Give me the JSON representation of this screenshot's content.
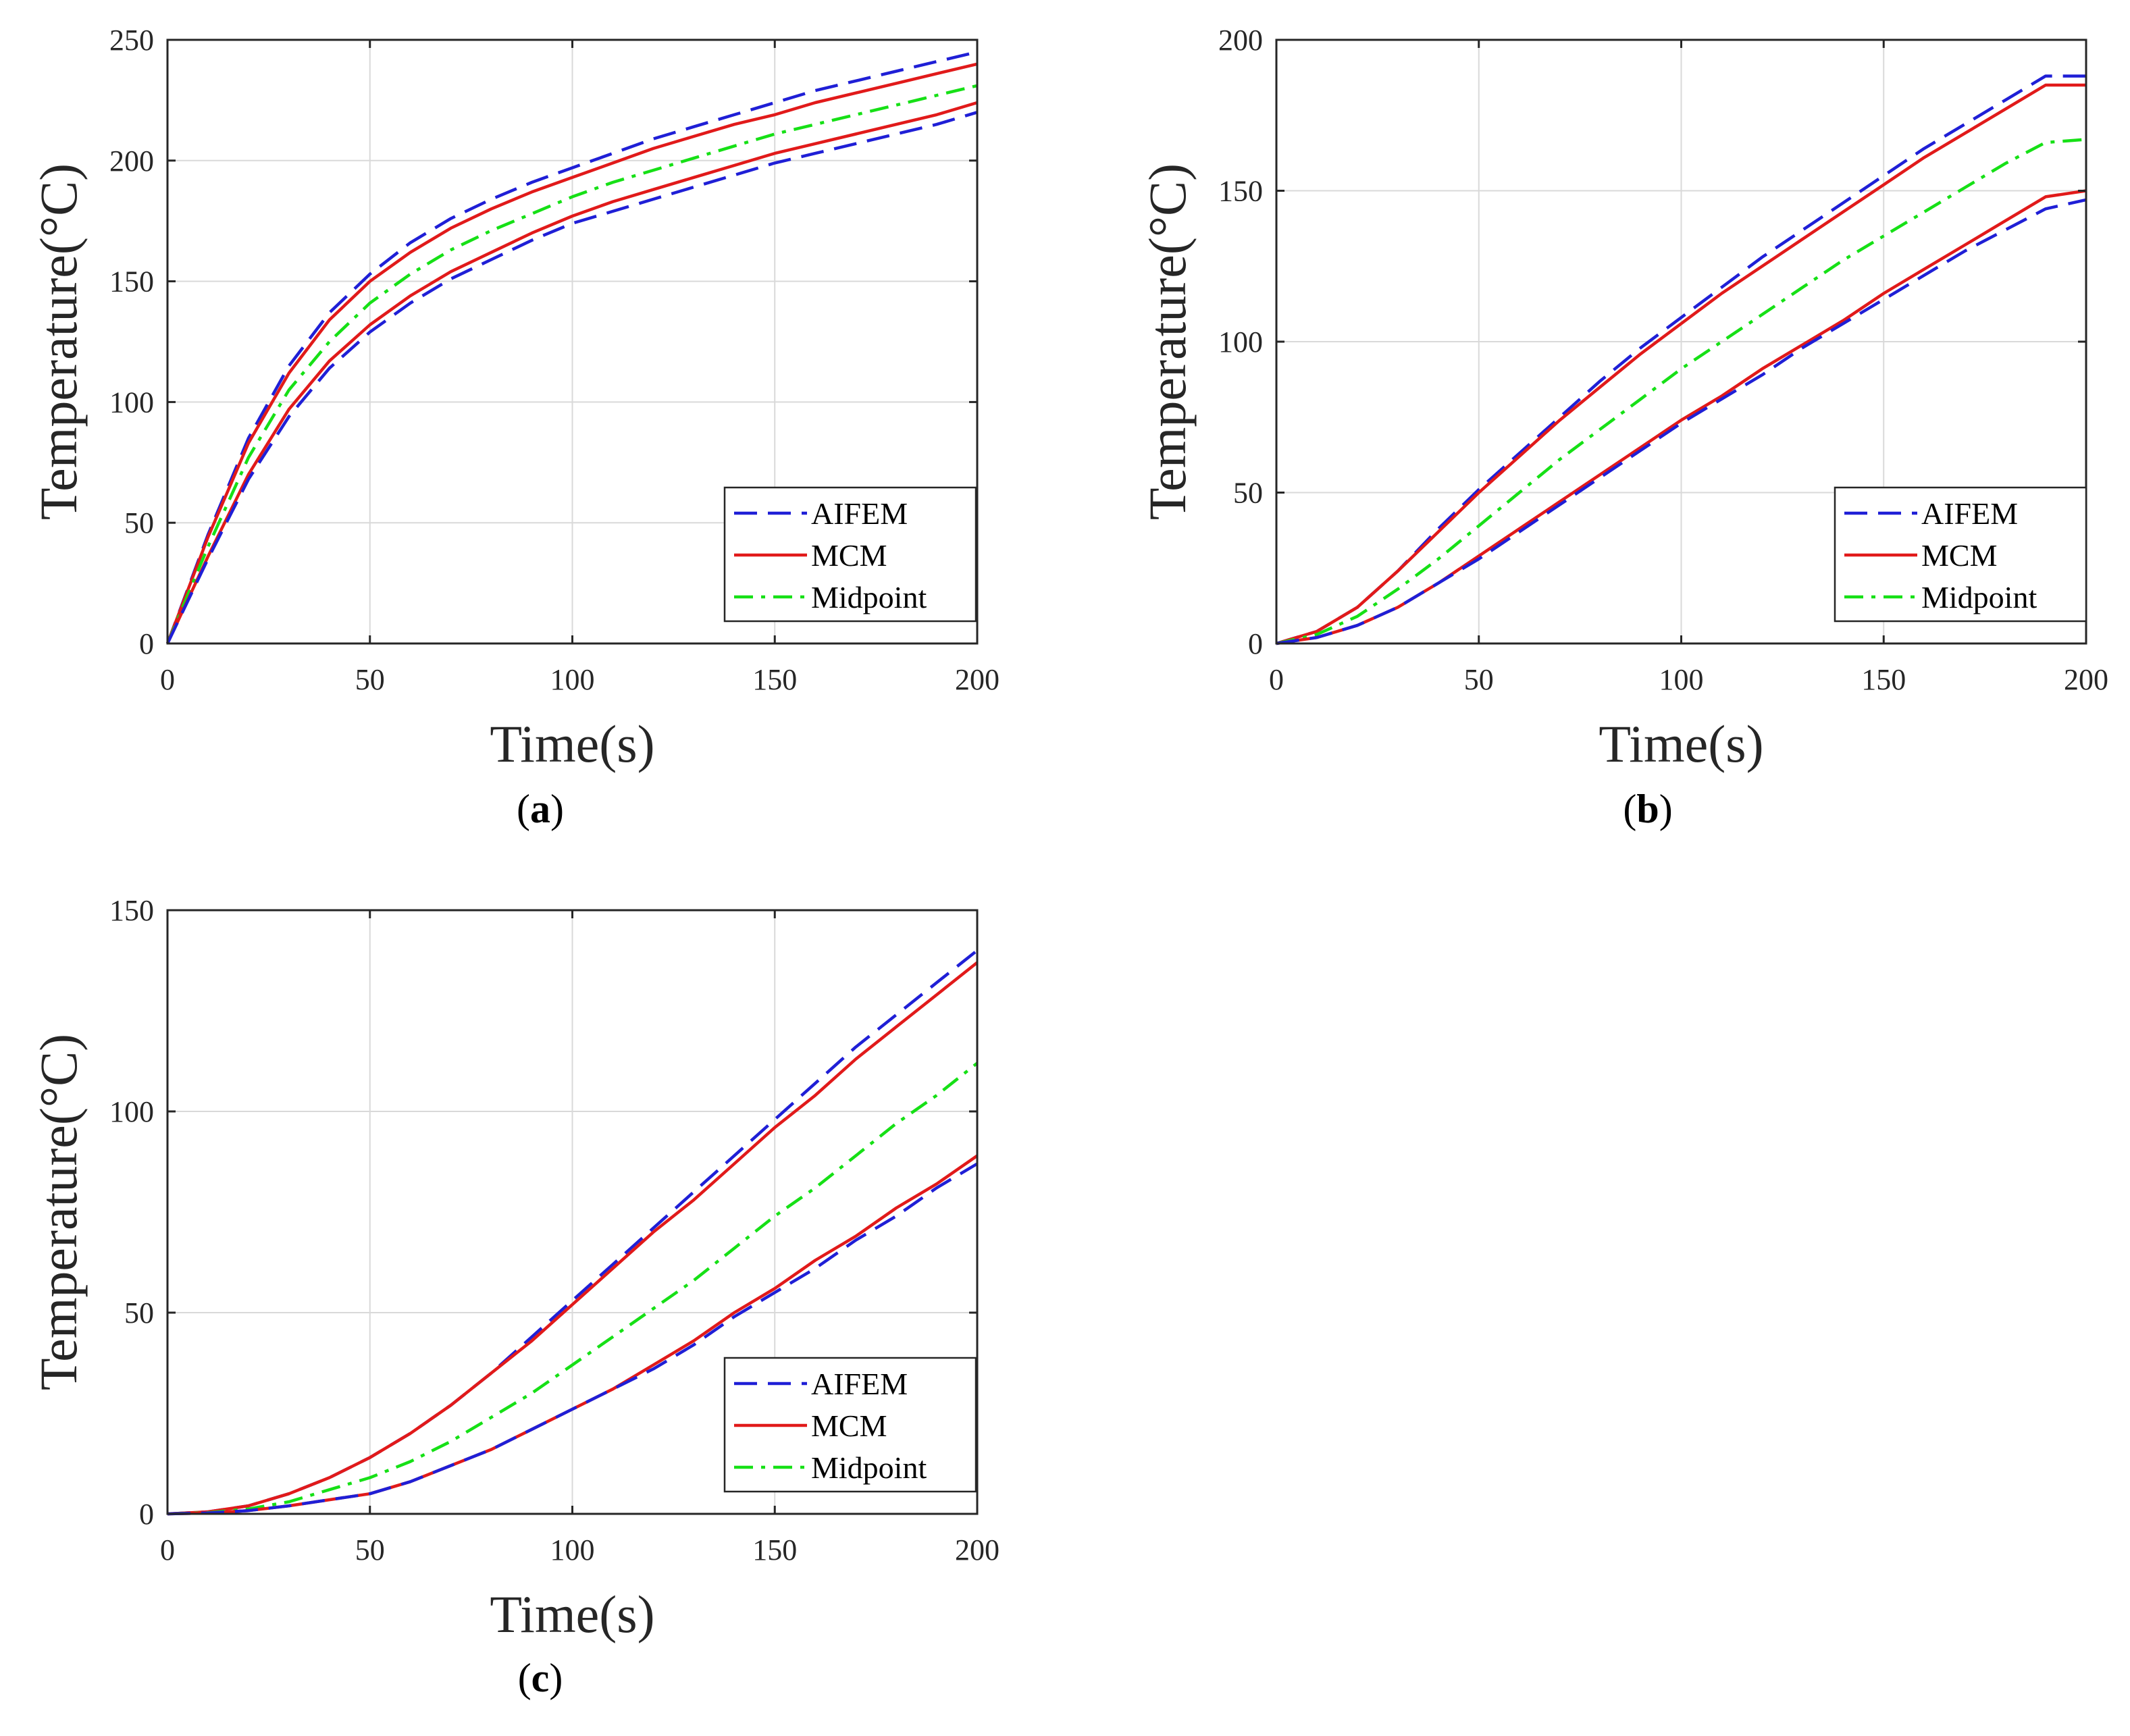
{
  "colors": {
    "upper_bound": "#1f1fd6",
    "mcm": "#e11a1a",
    "midpoint": "#16e016",
    "axis": "#262626",
    "grid": "#d9d9d9"
  },
  "legend_labels": [
    "AIFEM",
    "MCM",
    "Midpoint"
  ],
  "chart_data": [
    {
      "id": "a",
      "type": "line",
      "caption_letter": "a",
      "caption_open": "(",
      "caption_close": ")",
      "xlabel": "Time(s)",
      "ylabel": "Temperature(°C)",
      "xlim": [
        0,
        200
      ],
      "ylim": [
        0,
        250
      ],
      "xticks": [
        0,
        50,
        100,
        150,
        200
      ],
      "yticks": [
        0,
        50,
        100,
        150,
        200,
        250
      ],
      "grid": true,
      "legend_position": "bottom-right",
      "x": [
        0,
        10,
        20,
        30,
        40,
        50,
        60,
        70,
        80,
        90,
        100,
        110,
        120,
        130,
        140,
        150,
        160,
        170,
        180,
        190,
        200
      ],
      "series": [
        {
          "name": "AIFEM",
          "style": "dashed",
          "color_key": "upper_bound",
          "values": [
            0,
            45,
            85,
            115,
            137,
            153,
            166,
            176,
            184,
            191,
            197,
            203,
            209,
            214,
            219,
            224,
            229,
            233,
            237,
            241,
            245
          ]
        },
        {
          "name": "MCM",
          "style": "solid",
          "color_key": "mcm",
          "values": [
            0,
            44,
            83,
            112,
            134,
            150,
            162,
            172,
            180,
            187,
            193,
            199,
            205,
            210,
            215,
            219,
            224,
            228,
            232,
            236,
            240
          ]
        },
        {
          "name": "Midpoint",
          "style": "dashdot",
          "color_key": "midpoint",
          "values": [
            0,
            40,
            77,
            105,
            125,
            141,
            153,
            163,
            171,
            178,
            185,
            191,
            196,
            201,
            206,
            211,
            215,
            219,
            223,
            227,
            231
          ]
        },
        {
          "name": "MCM",
          "style": "solid",
          "color_key": "mcm",
          "values": [
            0,
            36,
            70,
            97,
            117,
            132,
            144,
            154,
            162,
            170,
            177,
            183,
            188,
            193,
            198,
            203,
            207,
            211,
            215,
            219,
            224
          ]
        },
        {
          "name": "AIFEM",
          "style": "dashed",
          "color_key": "upper_bound",
          "values": [
            0,
            35,
            68,
            94,
            114,
            129,
            141,
            151,
            159,
            167,
            174,
            179,
            184,
            189,
            194,
            199,
            203,
            207,
            211,
            215,
            220
          ]
        }
      ]
    },
    {
      "id": "b",
      "type": "line",
      "caption_letter": "b",
      "caption_open": "(",
      "caption_close": ")",
      "xlabel": "Time(s)",
      "ylabel": "Temperature(°C)",
      "xlim": [
        0,
        200
      ],
      "ylim": [
        0,
        200
      ],
      "xticks": [
        0,
        50,
        100,
        150,
        200
      ],
      "yticks": [
        0,
        50,
        100,
        150,
        200
      ],
      "grid": true,
      "legend_position": "bottom-right",
      "x": [
        0,
        10,
        20,
        30,
        40,
        50,
        60,
        70,
        80,
        90,
        100,
        110,
        120,
        130,
        140,
        150,
        160,
        170,
        180,
        190,
        200
      ],
      "series": [
        {
          "name": "AIFEM",
          "style": "dashed",
          "color_key": "upper_bound",
          "values": [
            0,
            4,
            12,
            24,
            38,
            51,
            63,
            75,
            87,
            98,
            108,
            118,
            128,
            137,
            146,
            155,
            164,
            172,
            180,
            188,
            188
          ]
        },
        {
          "name": "MCM",
          "style": "solid",
          "color_key": "mcm",
          "values": [
            0,
            4,
            12,
            24,
            37,
            50,
            62,
            74,
            85,
            96,
            106,
            116,
            125,
            134,
            143,
            152,
            161,
            169,
            177,
            185,
            185
          ]
        },
        {
          "name": "Midpoint",
          "style": "dashdot",
          "color_key": "midpoint",
          "values": [
            0,
            3,
            9,
            18,
            28,
            39,
            50,
            61,
            71,
            81,
            91,
            100,
            109,
            118,
            127,
            135,
            143,
            151,
            159,
            166,
            167
          ]
        },
        {
          "name": "MCM",
          "style": "solid",
          "color_key": "mcm",
          "values": [
            0,
            2,
            6,
            12,
            20,
            29,
            38,
            47,
            56,
            65,
            74,
            82,
            91,
            99,
            107,
            116,
            124,
            132,
            140,
            148,
            150
          ]
        },
        {
          "name": "AIFEM",
          "style": "dashed",
          "color_key": "upper_bound",
          "values": [
            0,
            2,
            6,
            12,
            20,
            28,
            37,
            46,
            55,
            64,
            73,
            81,
            89,
            98,
            106,
            114,
            122,
            130,
            137,
            144,
            147
          ]
        }
      ]
    },
    {
      "id": "c",
      "type": "line",
      "caption_letter": "c",
      "caption_open": "(",
      "caption_close": ")",
      "xlabel": "Time(s)",
      "ylabel": "Temperature(°C)",
      "xlim": [
        0,
        200
      ],
      "ylim": [
        0,
        150
      ],
      "xticks": [
        0,
        50,
        100,
        150,
        200
      ],
      "yticks": [
        0,
        50,
        100,
        150
      ],
      "grid": true,
      "legend_position": "bottom-right",
      "x": [
        0,
        10,
        20,
        30,
        40,
        50,
        60,
        70,
        80,
        90,
        100,
        110,
        120,
        130,
        140,
        150,
        160,
        170,
        180,
        190,
        200
      ],
      "series": [
        {
          "name": "AIFEM",
          "style": "dashed",
          "color_key": "upper_bound",
          "values": [
            0,
            0.5,
            2,
            5,
            9,
            14,
            20,
            27,
            35,
            44,
            53,
            62,
            71,
            80,
            89,
            98,
            107,
            116,
            124,
            132,
            140
          ]
        },
        {
          "name": "MCM",
          "style": "solid",
          "color_key": "mcm",
          "values": [
            0,
            0.5,
            2,
            5,
            9,
            14,
            20,
            27,
            35,
            43,
            52,
            61,
            70,
            78,
            87,
            96,
            104,
            113,
            121,
            129,
            137
          ]
        },
        {
          "name": "Midpoint",
          "style": "dashdot",
          "color_key": "midpoint",
          "values": [
            0,
            0.3,
            1.2,
            3,
            6,
            9,
            13,
            18,
            24,
            30,
            37,
            44,
            51,
            58,
            66,
            74,
            81,
            89,
            97,
            104,
            112
          ]
        },
        {
          "name": "MCM",
          "style": "solid",
          "color_key": "mcm",
          "values": [
            0,
            0.2,
            0.8,
            2,
            3.5,
            5,
            8,
            12,
            16,
            21,
            26,
            31,
            37,
            43,
            50,
            56,
            63,
            69,
            76,
            82,
            89
          ]
        },
        {
          "name": "AIFEM",
          "style": "dashed",
          "color_key": "upper_bound",
          "values": [
            0,
            0.2,
            0.8,
            2,
            3.5,
            5,
            8,
            12,
            16,
            21,
            26,
            31,
            36,
            42,
            49,
            55,
            61,
            68,
            74,
            81,
            87
          ]
        }
      ]
    }
  ]
}
